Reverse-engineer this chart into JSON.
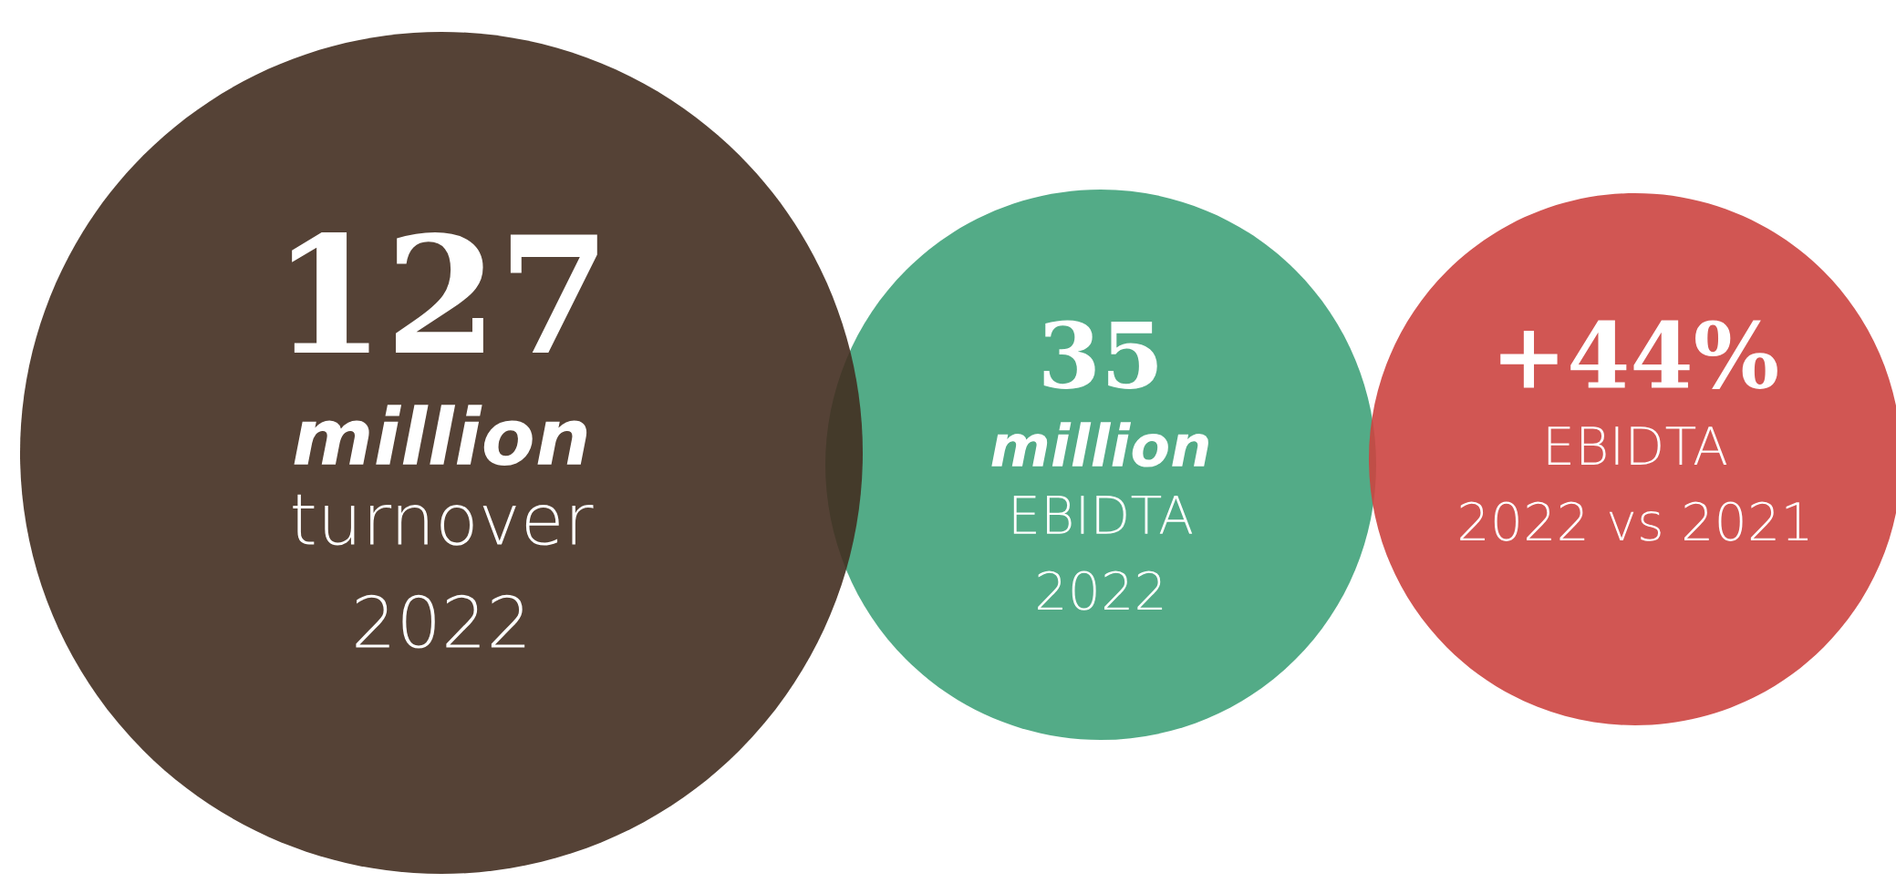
{
  "chart_data": {
    "type": "other",
    "categories": [
      "million\nturnover\n2022",
      "million\nEBIDTA\n2022",
      "EBIDTA\n2022 vs 2021"
    ],
    "values": [
      127,
      35,
      44
    ],
    "value_labels": [
      "127",
      "35",
      "+44%"
    ],
    "colors": [
      "#432d20",
      "#40a27a",
      "#cc4440"
    ]
  }
}
